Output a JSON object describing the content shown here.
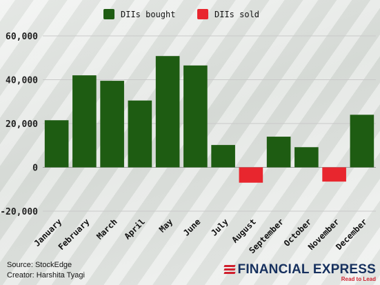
{
  "chart_data": {
    "type": "bar",
    "categories": [
      "January",
      "February",
      "March",
      "April",
      "May",
      "June",
      "July",
      "August",
      "September",
      "October",
      "November",
      "December"
    ],
    "values": [
      21500,
      42000,
      39500,
      30500,
      50800,
      46500,
      10200,
      -7000,
      14000,
      9200,
      -6500,
      24000
    ],
    "ylim": [
      -20000,
      60000
    ],
    "yticks": [
      -20000,
      0,
      20000,
      40000,
      60000
    ],
    "ytick_labels": [
      "-20,000",
      "0",
      "20,000",
      "40,000",
      "60,000"
    ],
    "grid": "horizontal",
    "legend": {
      "position": "top",
      "entries": [
        {
          "label": "DIIs bought",
          "color": "#1e5c12"
        },
        {
          "label": "DIIs sold",
          "color": "#e8262e"
        }
      ]
    },
    "colors": {
      "positive": "#1e5c12",
      "negative": "#e8262e"
    }
  },
  "footer": {
    "source": "Source: StockEdge",
    "creator": "Creator: Harshita Tyagi"
  },
  "brand": {
    "name": "FINANCIAL EXPRESS",
    "tagline": "Read to Lead"
  }
}
